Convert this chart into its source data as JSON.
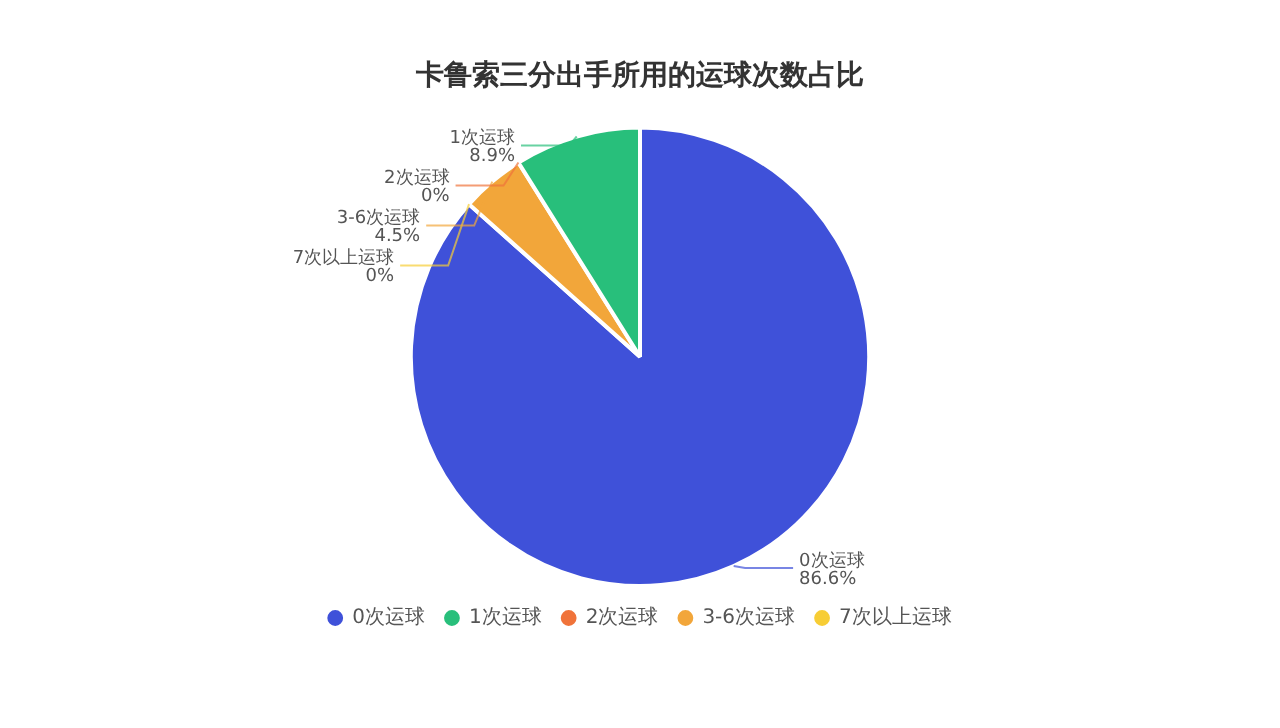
{
  "chart_data": {
    "type": "pie",
    "title": "卡鲁索三分出手所用的运球次数占比",
    "categories": [
      "0次运球",
      "1次运球",
      "2次运球",
      "3-6次运球",
      "7次以上运球"
    ],
    "values": [
      86.6,
      8.9,
      0,
      4.5,
      0
    ],
    "colors": [
      "#3f51d9",
      "#28bf7b",
      "#f0733a",
      "#f2a63a",
      "#f7cd35"
    ],
    "value_labels": [
      "86.6%",
      "8.9%",
      "0%",
      "4.5%",
      "0%"
    ],
    "legend": "bottom"
  }
}
